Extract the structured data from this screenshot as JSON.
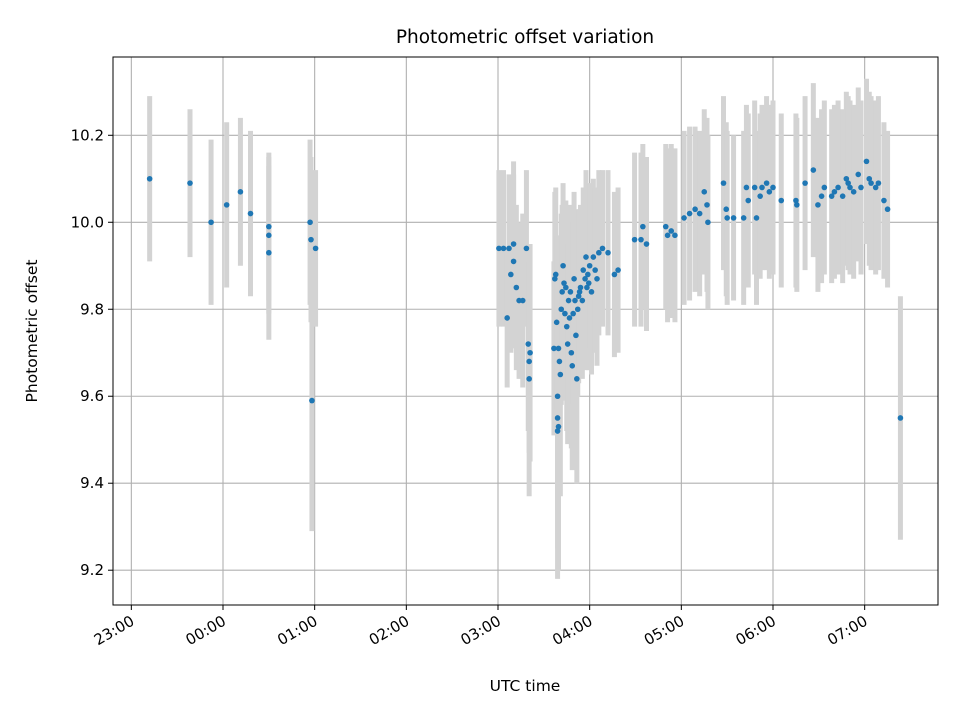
{
  "chart_data": {
    "type": "scatter",
    "title": "Photometric offset variation",
    "xlabel": "UTC time",
    "ylabel": "Photometric offset",
    "x_unit": "hours",
    "xlim": [
      -1.2,
      7.8
    ],
    "ylim": [
      9.12,
      10.38
    ],
    "grid": true,
    "x_ticks": [
      {
        "value": -1,
        "label": "23:00"
      },
      {
        "value": 0,
        "label": "00:00"
      },
      {
        "value": 1,
        "label": "01:00"
      },
      {
        "value": 2,
        "label": "02:00"
      },
      {
        "value": 3,
        "label": "03:00"
      },
      {
        "value": 4,
        "label": "04:00"
      },
      {
        "value": 5,
        "label": "05:00"
      },
      {
        "value": 6,
        "label": "06:00"
      },
      {
        "value": 7,
        "label": "07:00"
      }
    ],
    "y_ticks": [
      {
        "value": 9.2,
        "label": "9.2"
      },
      {
        "value": 9.4,
        "label": "9.4"
      },
      {
        "value": 9.6,
        "label": "9.6"
      },
      {
        "value": 9.8,
        "label": "9.8"
      },
      {
        "value": 10.0,
        "label": "10.0"
      },
      {
        "value": 10.2,
        "label": "10.2"
      }
    ],
    "colors": {
      "points": "#1f77b4",
      "errorbars": "#d3d3d3",
      "grid": "#b0b0b0"
    },
    "series": [
      {
        "points": [
          [
            -0.8,
            10.1,
            0.19
          ],
          [
            -0.36,
            10.09,
            0.17
          ],
          [
            -0.13,
            10.0,
            0.19
          ],
          [
            0.04,
            10.04,
            0.19
          ],
          [
            0.19,
            10.07,
            0.17
          ],
          [
            0.3,
            10.02,
            0.19
          ],
          [
            0.5,
            9.99,
            0.17
          ],
          [
            0.5,
            9.97,
            0.18
          ],
          [
            0.5,
            9.93,
            0.2
          ],
          [
            0.95,
            10.0,
            0.19
          ],
          [
            0.96,
            9.96,
            0.19
          ],
          [
            1.01,
            9.94,
            0.18
          ],
          [
            0.97,
            9.59,
            0.3
          ],
          [
            3.01,
            9.94,
            0.18
          ],
          [
            3.06,
            9.94,
            0.18
          ],
          [
            3.1,
            9.78,
            0.16
          ],
          [
            3.12,
            9.94,
            0.17
          ],
          [
            3.14,
            9.88,
            0.18
          ],
          [
            3.17,
            9.91,
            0.2
          ],
          [
            3.17,
            9.95,
            0.19
          ],
          [
            3.2,
            9.85,
            0.19
          ],
          [
            3.23,
            9.82,
            0.18
          ],
          [
            3.27,
            9.82,
            0.2
          ],
          [
            3.31,
            9.94,
            0.18
          ],
          [
            3.33,
            9.72,
            0.2
          ],
          [
            3.34,
            9.68,
            0.21
          ],
          [
            3.34,
            9.64,
            0.27
          ],
          [
            3.35,
            9.7,
            0.25
          ],
          [
            3.61,
            9.71,
            0.2
          ],
          [
            3.62,
            9.87,
            0.2
          ],
          [
            3.63,
            9.88,
            0.2
          ],
          [
            3.64,
            9.77,
            0.2
          ],
          [
            3.65,
            9.6,
            0.26
          ],
          [
            3.65,
            9.55,
            0.3
          ],
          [
            3.65,
            9.52,
            0.34
          ],
          [
            3.66,
            9.53,
            0.33
          ],
          [
            3.66,
            9.71,
            0.25
          ],
          [
            3.67,
            9.68,
            0.24
          ],
          [
            3.68,
            9.65,
            0.28
          ],
          [
            3.69,
            9.8,
            0.22
          ],
          [
            3.7,
            9.84,
            0.2
          ],
          [
            3.71,
            9.9,
            0.19
          ],
          [
            3.72,
            9.86,
            0.19
          ],
          [
            3.73,
            9.79,
            0.2
          ],
          [
            3.74,
            9.85,
            0.2
          ],
          [
            3.75,
            9.76,
            0.24
          ],
          [
            3.76,
            9.72,
            0.23
          ],
          [
            3.77,
            9.82,
            0.21
          ],
          [
            3.78,
            9.78,
            0.2
          ],
          [
            3.79,
            9.84,
            0.2
          ],
          [
            3.8,
            9.7,
            0.22
          ],
          [
            3.81,
            9.67,
            0.24
          ],
          [
            3.82,
            9.79,
            0.21
          ],
          [
            3.83,
            9.87,
            0.2
          ],
          [
            3.84,
            9.82,
            0.2
          ],
          [
            3.85,
            9.74,
            0.22
          ],
          [
            3.86,
            9.64,
            0.24
          ],
          [
            3.87,
            9.8,
            0.2
          ],
          [
            3.88,
            9.83,
            0.2
          ],
          [
            3.89,
            9.84,
            0.19
          ],
          [
            3.9,
            9.85,
            0.19
          ],
          [
            3.92,
            9.82,
            0.18
          ],
          [
            3.93,
            9.89,
            0.19
          ],
          [
            3.95,
            9.87,
            0.19
          ],
          [
            3.96,
            9.92,
            0.2
          ],
          [
            3.97,
            9.85,
            0.19
          ],
          [
            3.98,
            9.88,
            0.19
          ],
          [
            3.99,
            9.86,
            0.2
          ],
          [
            4.0,
            9.9,
            0.19
          ],
          [
            4.02,
            9.84,
            0.19
          ],
          [
            4.04,
            9.92,
            0.18
          ],
          [
            4.06,
            9.89,
            0.19
          ],
          [
            4.08,
            9.87,
            0.2
          ],
          [
            4.1,
            9.93,
            0.19
          ],
          [
            4.14,
            9.94,
            0.18
          ],
          [
            4.2,
            9.93,
            0.19
          ],
          [
            4.27,
            9.88,
            0.19
          ],
          [
            4.31,
            9.89,
            0.19
          ],
          [
            4.49,
            9.96,
            0.2
          ],
          [
            4.56,
            9.96,
            0.2
          ],
          [
            4.58,
            9.99,
            0.19
          ],
          [
            4.62,
            9.95,
            0.2
          ],
          [
            4.83,
            9.99,
            0.19
          ],
          [
            4.85,
            9.97,
            0.2
          ],
          [
            4.89,
            9.98,
            0.2
          ],
          [
            4.93,
            9.97,
            0.2
          ],
          [
            5.03,
            10.01,
            0.2
          ],
          [
            5.09,
            10.02,
            0.2
          ],
          [
            5.15,
            10.03,
            0.19
          ],
          [
            5.2,
            10.02,
            0.19
          ],
          [
            5.25,
            10.07,
            0.19
          ],
          [
            5.28,
            10.04,
            0.2
          ],
          [
            5.29,
            10.0,
            0.2
          ],
          [
            5.46,
            10.09,
            0.2
          ],
          [
            5.49,
            10.03,
            0.2
          ],
          [
            5.5,
            10.01,
            0.2
          ],
          [
            5.57,
            10.01,
            0.19
          ],
          [
            5.68,
            10.01,
            0.2
          ],
          [
            5.71,
            10.08,
            0.19
          ],
          [
            5.73,
            10.05,
            0.2
          ],
          [
            5.8,
            10.08,
            0.2
          ],
          [
            5.82,
            10.01,
            0.2
          ],
          [
            5.86,
            10.06,
            0.19
          ],
          [
            5.88,
            10.08,
            0.19
          ],
          [
            5.93,
            10.09,
            0.2
          ],
          [
            5.96,
            10.07,
            0.2
          ],
          [
            6.0,
            10.08,
            0.2
          ],
          [
            6.09,
            10.05,
            0.2
          ],
          [
            6.25,
            10.05,
            0.2
          ],
          [
            6.26,
            10.04,
            0.2
          ],
          [
            6.35,
            10.09,
            0.2
          ],
          [
            6.44,
            10.12,
            0.2
          ],
          [
            6.49,
            10.04,
            0.2
          ],
          [
            6.53,
            10.06,
            0.2
          ],
          [
            6.56,
            10.08,
            0.2
          ],
          [
            6.64,
            10.06,
            0.2
          ],
          [
            6.67,
            10.07,
            0.2
          ],
          [
            6.71,
            10.08,
            0.2
          ],
          [
            6.76,
            10.06,
            0.2
          ],
          [
            6.8,
            10.1,
            0.2
          ],
          [
            6.82,
            10.09,
            0.2
          ],
          [
            6.84,
            10.08,
            0.2
          ],
          [
            6.88,
            10.07,
            0.2
          ],
          [
            6.93,
            10.11,
            0.2
          ],
          [
            6.96,
            10.08,
            0.2
          ],
          [
            7.02,
            10.14,
            0.19
          ],
          [
            7.05,
            10.1,
            0.2
          ],
          [
            7.07,
            10.09,
            0.2
          ],
          [
            7.12,
            10.08,
            0.2
          ],
          [
            7.15,
            10.09,
            0.2
          ],
          [
            7.21,
            10.05,
            0.18
          ],
          [
            7.25,
            10.03,
            0.18
          ],
          [
            7.39,
            9.55,
            0.28
          ]
        ]
      }
    ]
  }
}
